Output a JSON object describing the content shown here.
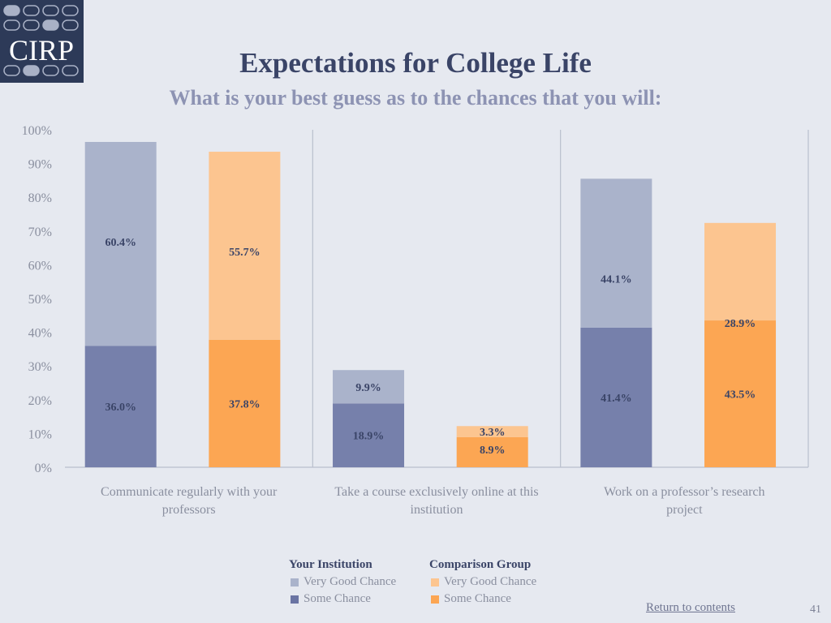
{
  "logo": {
    "text": "CIRP"
  },
  "title": "Expectations for College Life",
  "subtitle": "What is your best guess as to the chances that you will:",
  "colors": {
    "inst_very_good": "#aab3cb",
    "inst_some": "#7680ab",
    "comp_very_good": "#fcc590",
    "comp_some": "#fca653"
  },
  "chart_data": {
    "type": "bar",
    "stacked": true,
    "ylim": [
      0,
      100
    ],
    "yticks": [
      "0%",
      "10%",
      "20%",
      "30%",
      "40%",
      "50%",
      "60%",
      "70%",
      "80%",
      "90%",
      "100%"
    ],
    "categories": [
      "Communicate regularly with your professors",
      "Take a course exclusively online at this institution",
      "Work on a professor’s research project"
    ],
    "category_lines": [
      [
        "Communicate regularly with your",
        "professors"
      ],
      [
        "Take a course exclusively online at this",
        "institution"
      ],
      [
        "Work on a professor’s research",
        "project"
      ]
    ],
    "groups": [
      {
        "name": "Your Institution",
        "some_chance": [
          36.0,
          18.9,
          41.4
        ],
        "very_good_chance": [
          60.4,
          9.9,
          44.1
        ],
        "some_labels": [
          "36.0%",
          "18.9%",
          "41.4%"
        ],
        "very_good_labels": [
          "60.4%",
          "9.9%",
          "44.1%"
        ]
      },
      {
        "name": "Comparison Group",
        "some_chance": [
          37.8,
          8.9,
          43.5
        ],
        "very_good_chance": [
          55.7,
          3.3,
          28.9
        ],
        "some_labels": [
          "37.8%",
          "8.9%",
          "43.5%"
        ],
        "very_good_labels": [
          "55.7%",
          "3.3%",
          "28.9%"
        ]
      }
    ],
    "grid": false,
    "legend_position": "bottom-center"
  },
  "legend": {
    "institution": {
      "title": "Your Institution",
      "very_good": "Very Good Chance",
      "some": "Some Chance"
    },
    "comparison": {
      "title": "Comparison Group",
      "very_good": "Very Good Chance",
      "some": "Some Chance"
    }
  },
  "footer": {
    "return_link": "Return to contents",
    "page_number": "41"
  }
}
